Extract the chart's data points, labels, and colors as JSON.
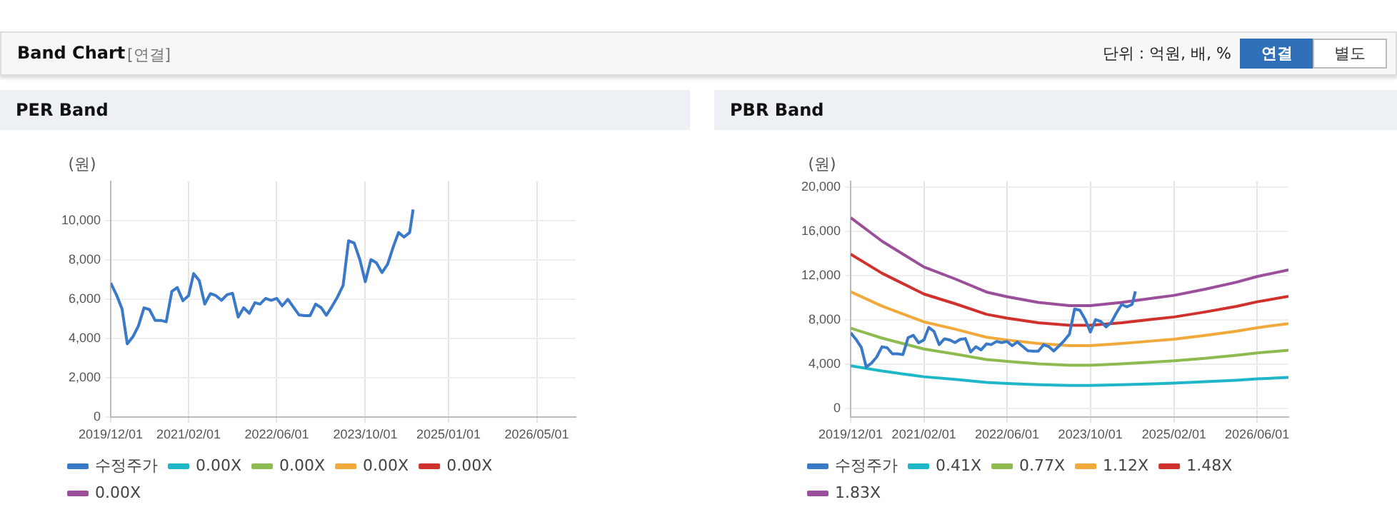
{
  "chart_data": [
    {
      "type": "line",
      "title": "PER Band",
      "ylabel": "(원)",
      "annotations": [
        "Band Chart",
        "[연결]",
        "단위 : 억원, 배, %",
        "연결",
        "별도"
      ],
      "grid": true,
      "legend": "bottom",
      "marker": "none",
      "line_style": "solid",
      "xlim": [
        "2019-12-01",
        "2026-12-01"
      ],
      "xticks": [
        {
          "value": "2019-12-01",
          "label": "2019/12/01"
        },
        {
          "value": "2021-02-01",
          "label": "2021/02/01"
        },
        {
          "value": "2022-06-01",
          "label": "2022/06/01"
        },
        {
          "value": "2023-10-01",
          "label": "2023/10/01"
        },
        {
          "value": "2025-01-01",
          "label": "2025/01/01"
        },
        {
          "value": "2026-05-01",
          "label": "2026/05/01"
        }
      ],
      "ylim": [
        0,
        12000
      ],
      "yticks": [
        0,
        {
          "value": 2000,
          "label": "2,000"
        },
        {
          "value": 4000,
          "label": "4,000"
        },
        {
          "value": 6000,
          "label": "6,000"
        },
        {
          "value": 8000,
          "label": "8,000"
        },
        {
          "value": 10000,
          "label": "10,000"
        }
      ],
      "series": [
        {
          "name": "수정주가",
          "color": "#3a78c8",
          "x": [
            "2019-12",
            "2020-01",
            "2020-02",
            "2020-03",
            "2020-04",
            "2020-05",
            "2020-06",
            "2020-07",
            "2020-08",
            "2020-09",
            "2020-10",
            "2020-11",
            "2020-12",
            "2021-01",
            "2021-02",
            "2021-03",
            "2021-04",
            "2021-05",
            "2021-06",
            "2021-07",
            "2021-08",
            "2021-09",
            "2021-10",
            "2021-11",
            "2021-12",
            "2022-01",
            "2022-02",
            "2022-03",
            "2022-04",
            "2022-05",
            "2022-06",
            "2022-07",
            "2022-08",
            "2022-10",
            "2022-11",
            "2022-12",
            "2023-01",
            "2023-02",
            "2023-03",
            "2023-04",
            "2023-05",
            "2023-06",
            "2023-07",
            "2023-08",
            "2023-09",
            "2023-10",
            "2023-11",
            "2023-12",
            "2024-01",
            "2024-02",
            "2024-03",
            "2024-04",
            "2024-05",
            "2024-06",
            "2024-06-20"
          ],
          "values": [
            6830,
            6240,
            5520,
            3740,
            4100,
            4640,
            5570,
            5480,
            4930,
            4930,
            4860,
            6400,
            6600,
            5930,
            6190,
            7310,
            6950,
            5760,
            6290,
            6190,
            5950,
            6240,
            6310,
            5100,
            5570,
            5290,
            5830,
            5760,
            6050,
            5950,
            6050,
            5670,
            6000,
            5210,
            5170,
            5170,
            5760,
            5570,
            5190,
            5640,
            6120,
            6710,
            8980,
            8860,
            8020,
            6900,
            8020,
            7860,
            7360,
            7790,
            8620,
            9400,
            9170,
            9400,
            10570
          ]
        },
        {
          "name": "0.00X",
          "color": "#1fb7c8"
        },
        {
          "name": "0.00X",
          "color": "#8dbb4f"
        },
        {
          "name": "0.00X",
          "color": "#f2a93b"
        },
        {
          "name": "0.00X",
          "color": "#d0312d"
        },
        {
          "name": "0.00X",
          "color": "#9b4f9b"
        }
      ]
    },
    {
      "type": "line",
      "title": "PBR Band",
      "ylabel": "(원)",
      "grid": true,
      "legend": "bottom",
      "marker": "none",
      "line_style": "solid",
      "xlim": [
        "2019-12-01",
        "2026-12-01"
      ],
      "xticks": [
        {
          "value": "2019-12-01",
          "label": "2019/12/01"
        },
        {
          "value": "2021-02-01",
          "label": "2021/02/01"
        },
        {
          "value": "2022-06-01",
          "label": "2022/06/01"
        },
        {
          "value": "2023-10-01",
          "label": "2023/10/01"
        },
        {
          "value": "2025-02-01",
          "label": "2025/02/01"
        },
        {
          "value": "2026-06-01",
          "label": "2026/06/01"
        }
      ],
      "ylim": [
        -800,
        20500
      ],
      "yticks": [
        0,
        {
          "value": 4000,
          "label": "4,000"
        },
        {
          "value": 8000,
          "label": "8,000"
        },
        {
          "value": 12000,
          "label": "12,000"
        },
        {
          "value": 16000,
          "label": "16,000"
        },
        {
          "value": 20000,
          "label": "20,000"
        }
      ],
      "series": [
        {
          "name": "수정주가",
          "color": "#3a78c8",
          "x": [
            "2019-12",
            "2020-01",
            "2020-02",
            "2020-03",
            "2020-04",
            "2020-05",
            "2020-06",
            "2020-07",
            "2020-08",
            "2020-09",
            "2020-10",
            "2020-11",
            "2020-12",
            "2021-01",
            "2021-02",
            "2021-03",
            "2021-04",
            "2021-05",
            "2021-06",
            "2021-07",
            "2021-08",
            "2021-09",
            "2021-10",
            "2021-11",
            "2021-12",
            "2022-01",
            "2022-02",
            "2022-03",
            "2022-04",
            "2022-05",
            "2022-06",
            "2022-07",
            "2022-08",
            "2022-10",
            "2022-11",
            "2022-12",
            "2023-01",
            "2023-02",
            "2023-03",
            "2023-04",
            "2023-05",
            "2023-06",
            "2023-07",
            "2023-08",
            "2023-09",
            "2023-10",
            "2023-11",
            "2023-12",
            "2024-01",
            "2024-02",
            "2024-03",
            "2024-04",
            "2024-05",
            "2024-06",
            "2024-06-20"
          ],
          "values": [
            6830,
            6240,
            5520,
            3740,
            4100,
            4640,
            5570,
            5480,
            4930,
            4930,
            4860,
            6400,
            6600,
            5930,
            6190,
            7310,
            6950,
            5760,
            6290,
            6190,
            5950,
            6240,
            6310,
            5100,
            5570,
            5290,
            5830,
            5760,
            6050,
            5950,
            6050,
            5670,
            6000,
            5210,
            5170,
            5170,
            5760,
            5570,
            5190,
            5640,
            6120,
            6710,
            8980,
            8860,
            8020,
            6900,
            8020,
            7860,
            7360,
            7790,
            8620,
            9400,
            9170,
            9400,
            10570
          ]
        },
        {
          "name": "0.41X",
          "color": "#1fb7c8",
          "x": [
            "2019-12",
            "2020-06",
            "2021-02",
            "2021-08",
            "2022-02",
            "2022-06",
            "2022-12",
            "2023-06",
            "2023-10",
            "2024-04",
            "2024-10",
            "2025-02",
            "2025-08",
            "2026-02",
            "2026-06",
            "2026-12"
          ],
          "values": [
            3860,
            3380,
            2860,
            2620,
            2350,
            2260,
            2140,
            2080,
            2080,
            2140,
            2230,
            2290,
            2410,
            2550,
            2670,
            2800
          ]
        },
        {
          "name": "0.77X",
          "color": "#8dbb4f",
          "x": [
            "2019-12",
            "2020-06",
            "2021-02",
            "2021-08",
            "2022-02",
            "2022-06",
            "2022-12",
            "2023-06",
            "2023-10",
            "2024-04",
            "2024-10",
            "2025-02",
            "2025-08",
            "2026-02",
            "2026-06",
            "2026-12"
          ],
          "values": [
            7250,
            6350,
            5370,
            4920,
            4420,
            4250,
            4030,
            3900,
            3900,
            4030,
            4190,
            4300,
            4530,
            4800,
            5010,
            5260
          ]
        },
        {
          "name": "1.12X",
          "color": "#f2a93b",
          "x": [
            "2019-12",
            "2020-06",
            "2021-02",
            "2021-08",
            "2022-02",
            "2022-06",
            "2022-12",
            "2023-06",
            "2023-10",
            "2024-04",
            "2024-10",
            "2025-02",
            "2025-08",
            "2026-02",
            "2026-06",
            "2026-12"
          ],
          "values": [
            10540,
            9240,
            7820,
            7160,
            6430,
            6180,
            5860,
            5680,
            5680,
            5860,
            6100,
            6250,
            6590,
            6980,
            7290,
            7660
          ]
        },
        {
          "name": "1.48X",
          "color": "#d0312d",
          "x": [
            "2019-12",
            "2020-06",
            "2021-02",
            "2021-08",
            "2022-02",
            "2022-06",
            "2022-12",
            "2023-06",
            "2023-10",
            "2024-04",
            "2024-10",
            "2025-02",
            "2025-08",
            "2026-02",
            "2026-06",
            "2026-12"
          ],
          "values": [
            13930,
            12210,
            10330,
            9460,
            8500,
            8160,
            7740,
            7510,
            7510,
            7740,
            8060,
            8260,
            8710,
            9220,
            9630,
            10120
          ]
        },
        {
          "name": "1.83X",
          "color": "#9b4f9b",
          "x": [
            "2019-12",
            "2020-06",
            "2021-02",
            "2021-08",
            "2022-02",
            "2022-06",
            "2022-12",
            "2023-06",
            "2023-10",
            "2024-04",
            "2024-10",
            "2025-02",
            "2025-08",
            "2026-02",
            "2026-06",
            "2026-12"
          ],
          "values": [
            17230,
            15100,
            12770,
            11700,
            10510,
            10090,
            9570,
            9280,
            9280,
            9570,
            9960,
            10210,
            10770,
            11400,
            11910,
            12510
          ]
        }
      ]
    }
  ]
}
